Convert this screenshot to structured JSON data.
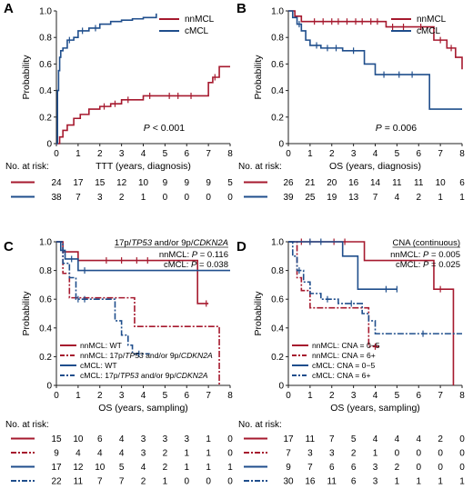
{
  "chart_data": [
    {
      "panel": "A",
      "type": "line",
      "step": true,
      "xlabel": "TTT (years, diagnosis)",
      "ylabel": "Probability",
      "xlim": [
        0,
        8
      ],
      "ylim": [
        0,
        1.0
      ],
      "xticks": [
        0,
        1,
        2,
        3,
        4,
        5,
        6,
        7,
        8
      ],
      "yticks": [
        "0",
        "0.2",
        "0.4",
        "0.6",
        "0.8",
        "1.0"
      ],
      "legend_position": "top-right",
      "annotation": "P < 0.001",
      "series": [
        {
          "name": "nnMCL",
          "color": "#a6192e",
          "dash": "solid",
          "x": [
            0,
            0.15,
            0.3,
            0.5,
            0.8,
            1.1,
            1.5,
            2.0,
            2.5,
            3.0,
            4.0,
            7.0,
            7.2,
            7.5,
            8.0
          ],
          "y": [
            0,
            0.05,
            0.1,
            0.14,
            0.19,
            0.22,
            0.26,
            0.28,
            0.3,
            0.33,
            0.36,
            0.46,
            0.5,
            0.58,
            0.58
          ],
          "censor_x": [
            2.2,
            2.7,
            3.3,
            4.3,
            5.2,
            5.6,
            6.2,
            7.3
          ]
        },
        {
          "name": "cMCL",
          "color": "#1f4e8c",
          "dash": "solid",
          "x": [
            0,
            0.05,
            0.1,
            0.15,
            0.2,
            0.3,
            0.5,
            0.8,
            1.0,
            1.5,
            2.0,
            2.5,
            3.0,
            3.5,
            4.0,
            4.6
          ],
          "y": [
            0,
            0.4,
            0.55,
            0.65,
            0.7,
            0.72,
            0.78,
            0.8,
            0.85,
            0.87,
            0.9,
            0.92,
            0.93,
            0.94,
            0.95,
            0.98
          ],
          "censor_x": [
            0.6,
            1.2,
            1.8
          ]
        }
      ],
      "risk_title": "No. at risk:",
      "risk_rows": [
        {
          "color": "#a6192e",
          "dash": "solid",
          "values": [
            "24",
            "17",
            "15",
            "12",
            "10",
            "9",
            "9",
            "9",
            "5"
          ]
        },
        {
          "color": "#1f4e8c",
          "dash": "solid",
          "values": [
            "38",
            "7",
            "3",
            "2",
            "1",
            "0",
            "0",
            "0",
            "0"
          ]
        }
      ]
    },
    {
      "panel": "B",
      "type": "line",
      "step": true,
      "xlabel": "OS (years, diagnosis)",
      "ylabel": "Probability",
      "xlim": [
        0,
        8
      ],
      "ylim": [
        0,
        1.0
      ],
      "xticks": [
        0,
        1,
        2,
        3,
        4,
        5,
        6,
        7,
        8
      ],
      "yticks": [
        "0",
        "0.2",
        "0.4",
        "0.6",
        "0.8",
        "1.0"
      ],
      "legend_position": "top-right",
      "annotation": "P = 0.006",
      "series": [
        {
          "name": "nnMCL",
          "color": "#a6192e",
          "dash": "solid",
          "x": [
            0,
            0.3,
            0.6,
            4.5,
            6.7,
            7.3,
            7.7,
            8.0
          ],
          "y": [
            1.0,
            0.96,
            0.92,
            0.88,
            0.78,
            0.72,
            0.65,
            0.56
          ],
          "censor_x": [
            1.2,
            1.6,
            2.0,
            2.3,
            2.7,
            3.1,
            3.4,
            3.8,
            4.1,
            4.8,
            5.3,
            6.1,
            7.0,
            7.5
          ]
        },
        {
          "name": "cMCL",
          "color": "#1f4e8c",
          "dash": "solid",
          "x": [
            0,
            0.2,
            0.4,
            0.6,
            0.8,
            1.0,
            1.5,
            2.5,
            3.5,
            4.0,
            6.5,
            8.0
          ],
          "y": [
            1.0,
            0.95,
            0.9,
            0.85,
            0.78,
            0.74,
            0.72,
            0.7,
            0.6,
            0.52,
            0.26,
            0.26
          ],
          "censor_x": [
            0.5,
            1.3,
            1.8,
            2.2,
            3.0,
            4.4,
            5.1,
            5.7
          ]
        }
      ],
      "risk_title": "No. at risk:",
      "risk_rows": [
        {
          "color": "#a6192e",
          "dash": "solid",
          "values": [
            "26",
            "21",
            "20",
            "16",
            "14",
            "11",
            "11",
            "10",
            "6"
          ]
        },
        {
          "color": "#1f4e8c",
          "dash": "solid",
          "values": [
            "39",
            "25",
            "19",
            "13",
            "7",
            "4",
            "2",
            "1",
            "1"
          ]
        }
      ]
    },
    {
      "panel": "C",
      "type": "line",
      "step": true,
      "xlabel": "OS (years, sampling)",
      "ylabel": "Probability",
      "xlim": [
        0,
        8
      ],
      "ylim": [
        0,
        1.0
      ],
      "xticks": [
        0,
        1,
        2,
        3,
        4,
        5,
        6,
        7,
        8
      ],
      "yticks": [
        "0",
        "0.2",
        "0.4",
        "0.6",
        "0.8",
        "1.0"
      ],
      "legend_position": "bottom-left",
      "header_plain": "17p/",
      "header_italic1": "TP53",
      "header_plain2": " and/or 9p/",
      "header_italic2": "CDKN2A",
      "pvalues": [
        "nnMCL: P = 0.116",
        "cMCL: P = 0.038"
      ],
      "series": [
        {
          "name": "nnMCL: WT",
          "color": "#a6192e",
          "dash": "solid",
          "x": [
            0,
            0.3,
            1.0,
            1.8,
            6.5,
            6.7,
            7.0
          ],
          "y": [
            1.0,
            0.93,
            0.87,
            0.87,
            0.57,
            0.57,
            0.57
          ],
          "censor_x": [
            2.3,
            3.0,
            3.7,
            4.2,
            6.9
          ]
        },
        {
          "name": "nnMCL: 17p/TP53 and/or 9p/CDKN2A",
          "color": "#a6192e",
          "dash": "dashdot",
          "x": [
            0,
            0.3,
            0.6,
            3.6,
            6.0,
            7.5
          ],
          "y": [
            1.0,
            0.78,
            0.61,
            0.41,
            0.41,
            0.0
          ],
          "censor_x": []
        },
        {
          "name": "cMCL: WT",
          "color": "#1f4e8c",
          "dash": "solid",
          "x": [
            0,
            0.2,
            0.4,
            1.0,
            8.0
          ],
          "y": [
            1.0,
            0.94,
            0.88,
            0.8,
            0.8
          ],
          "censor_x": [
            0.7,
            1.3
          ]
        },
        {
          "name": "cMCL: 17p/TP53 and/or 9p/CDKN2A",
          "color": "#1f4e8c",
          "dash": "dashdot",
          "x": [
            0,
            0.3,
            0.6,
            0.9,
            2.3,
            2.7,
            3.0,
            3.3,
            3.5,
            4.3
          ],
          "y": [
            1.0,
            0.85,
            0.75,
            0.6,
            0.6,
            0.45,
            0.35,
            0.28,
            0.22,
            0.22
          ],
          "censor_x": [
            1.0,
            1.3,
            3.8
          ]
        }
      ],
      "risk_title": "No. at risk:",
      "risk_rows": [
        {
          "color": "#a6192e",
          "dash": "solid",
          "values": [
            "15",
            "10",
            "6",
            "4",
            "3",
            "3",
            "3",
            "1",
            "0"
          ]
        },
        {
          "color": "#a6192e",
          "dash": "dashdot",
          "values": [
            "9",
            "4",
            "4",
            "4",
            "3",
            "2",
            "1",
            "1",
            "0"
          ]
        },
        {
          "color": "#1f4e8c",
          "dash": "solid",
          "values": [
            "17",
            "12",
            "10",
            "5",
            "4",
            "2",
            "1",
            "1",
            "1"
          ]
        },
        {
          "color": "#1f4e8c",
          "dash": "dashdot",
          "values": [
            "22",
            "11",
            "7",
            "7",
            "2",
            "1",
            "0",
            "0",
            "0"
          ]
        }
      ]
    },
    {
      "panel": "D",
      "type": "line",
      "step": true,
      "xlabel": "OS (years, sampling)",
      "ylabel": "Probability",
      "xlim": [
        0,
        8
      ],
      "ylim": [
        0,
        1.0
      ],
      "xticks": [
        0,
        1,
        2,
        3,
        4,
        5,
        6,
        7,
        8
      ],
      "yticks": [
        "0",
        "0.2",
        "0.4",
        "0.6",
        "0.8",
        "1.0"
      ],
      "legend_position": "bottom-left",
      "header_plain": "CNA (continuous)",
      "pvalues": [
        "nnMCL: P = 0.005",
        "cMCL: P = 0.025"
      ],
      "series": [
        {
          "name": "nnMCL: CNA = 0−5",
          "color": "#a6192e",
          "dash": "solid",
          "x": [
            0,
            1.5,
            3.5,
            6.7,
            7.3,
            7.6
          ],
          "y": [
            1.0,
            1.0,
            0.87,
            0.67,
            0.67,
            0.0
          ],
          "censor_x": [
            0.6,
            1.0,
            2.1,
            2.6,
            7.0
          ]
        },
        {
          "name": "nnMCL: CNA = 6+",
          "color": "#a6192e",
          "dash": "dashdot",
          "x": [
            0,
            0.4,
            0.6,
            1.0,
            3.7,
            4.2
          ],
          "y": [
            1.0,
            0.75,
            0.66,
            0.54,
            0.27,
            0.27
          ],
          "censor_x": [
            4.0
          ]
        },
        {
          "name": "cMCL: CNA = 0−5",
          "color": "#1f4e8c",
          "dash": "solid",
          "x": [
            0,
            2.5,
            3.2,
            4.2,
            5.0
          ],
          "y": [
            1.0,
            0.9,
            0.67,
            0.67,
            0.67
          ],
          "censor_x": [
            1.0,
            1.5,
            4.5,
            5.0
          ]
        },
        {
          "name": "cMCL: CNA = 6+",
          "color": "#1f4e8c",
          "dash": "dashdot",
          "x": [
            0,
            0.2,
            0.4,
            0.7,
            1.0,
            1.5,
            2.3,
            3.4,
            3.7,
            4.0,
            8.0
          ],
          "y": [
            1.0,
            0.9,
            0.8,
            0.72,
            0.64,
            0.6,
            0.57,
            0.5,
            0.45,
            0.36,
            0.36
          ],
          "censor_x": [
            0.5,
            1.8,
            2.9,
            6.2
          ]
        }
      ],
      "risk_title": "No. at risk:",
      "risk_rows": [
        {
          "color": "#a6192e",
          "dash": "solid",
          "values": [
            "17",
            "11",
            "7",
            "5",
            "4",
            "4",
            "4",
            "2",
            "0"
          ]
        },
        {
          "color": "#a6192e",
          "dash": "dashdot",
          "values": [
            "7",
            "3",
            "3",
            "2",
            "1",
            "0",
            "0",
            "0",
            "0"
          ]
        },
        {
          "color": "#1f4e8c",
          "dash": "solid",
          "values": [
            "9",
            "7",
            "6",
            "6",
            "3",
            "2",
            "0",
            "0",
            "0"
          ]
        },
        {
          "color": "#1f4e8c",
          "dash": "dashdot",
          "values": [
            "30",
            "16",
            "11",
            "6",
            "3",
            "1",
            "1",
            "1",
            "1"
          ]
        }
      ]
    }
  ]
}
